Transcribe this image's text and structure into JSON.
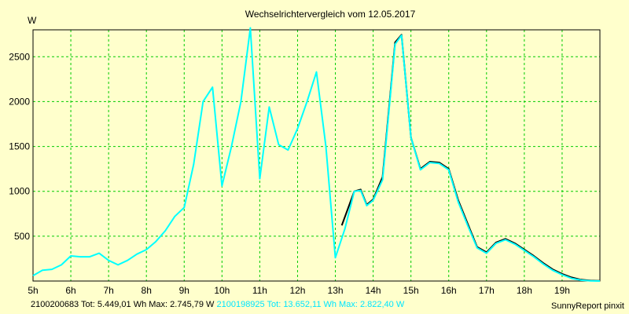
{
  "chart_data": {
    "type": "line",
    "title": "Wechselrichtervergleich vom 12.05.2017",
    "ylabel": "W",
    "xlim": [
      5,
      20
    ],
    "ylim": [
      0,
      2800
    ],
    "grid": true,
    "x_ticks": [
      {
        "value": 5,
        "label": "5h"
      },
      {
        "value": 6,
        "label": "6h"
      },
      {
        "value": 7,
        "label": "7h"
      },
      {
        "value": 8,
        "label": "8h"
      },
      {
        "value": 9,
        "label": "9h"
      },
      {
        "value": 10,
        "label": "10h"
      },
      {
        "value": 11,
        "label": "11h"
      },
      {
        "value": 12,
        "label": "12h"
      },
      {
        "value": 13,
        "label": "13h"
      },
      {
        "value": 14,
        "label": "14h"
      },
      {
        "value": 15,
        "label": "15h"
      },
      {
        "value": 16,
        "label": "16h"
      },
      {
        "value": 17,
        "label": "17h"
      },
      {
        "value": 18,
        "label": "18h"
      },
      {
        "value": 19,
        "label": "19h"
      }
    ],
    "y_ticks": [
      {
        "value": 500,
        "label": "500"
      },
      {
        "value": 1000,
        "label": "1000"
      },
      {
        "value": 1500,
        "label": "1500"
      },
      {
        "value": 2000,
        "label": "2000"
      },
      {
        "value": 2500,
        "label": "2500"
      }
    ],
    "series": [
      {
        "id": "2100200683",
        "color": "#000000",
        "points": [
          [
            13.17,
            620
          ],
          [
            13.5,
            1000
          ],
          [
            13.67,
            1020
          ],
          [
            13.83,
            850
          ],
          [
            14.0,
            910
          ],
          [
            14.25,
            1160
          ],
          [
            14.58,
            2660
          ],
          [
            14.75,
            2745
          ],
          [
            15.0,
            1600
          ],
          [
            15.25,
            1250
          ],
          [
            15.5,
            1330
          ],
          [
            15.75,
            1320
          ],
          [
            16.0,
            1250
          ],
          [
            16.25,
            900
          ],
          [
            16.5,
            640
          ],
          [
            16.75,
            380
          ],
          [
            17.0,
            320
          ],
          [
            17.25,
            430
          ],
          [
            17.5,
            470
          ],
          [
            17.75,
            420
          ],
          [
            18.0,
            350
          ],
          [
            18.25,
            280
          ],
          [
            18.5,
            200
          ],
          [
            18.75,
            130
          ],
          [
            19.0,
            80
          ],
          [
            19.25,
            40
          ],
          [
            19.5,
            15
          ],
          [
            19.75,
            5
          ],
          [
            20.0,
            2
          ]
        ]
      },
      {
        "id": "2100198925",
        "color": "#00ffff",
        "points": [
          [
            5.0,
            60
          ],
          [
            5.25,
            120
          ],
          [
            5.5,
            130
          ],
          [
            5.75,
            180
          ],
          [
            6.0,
            280
          ],
          [
            6.25,
            270
          ],
          [
            6.5,
            270
          ],
          [
            6.75,
            310
          ],
          [
            7.0,
            230
          ],
          [
            7.25,
            180
          ],
          [
            7.5,
            230
          ],
          [
            7.75,
            300
          ],
          [
            8.0,
            350
          ],
          [
            8.25,
            440
          ],
          [
            8.5,
            560
          ],
          [
            8.75,
            720
          ],
          [
            9.0,
            820
          ],
          [
            9.25,
            1300
          ],
          [
            9.5,
            2000
          ],
          [
            9.75,
            2160
          ],
          [
            10.0,
            1060
          ],
          [
            10.25,
            1500
          ],
          [
            10.5,
            2000
          ],
          [
            10.75,
            2822
          ],
          [
            11.0,
            1140
          ],
          [
            11.25,
            1940
          ],
          [
            11.5,
            1520
          ],
          [
            11.75,
            1460
          ],
          [
            12.0,
            1700
          ],
          [
            12.25,
            2000
          ],
          [
            12.5,
            2330
          ],
          [
            12.75,
            1500
          ],
          [
            13.0,
            260
          ],
          [
            13.25,
            580
          ],
          [
            13.5,
            1000
          ],
          [
            13.67,
            1010
          ],
          [
            13.83,
            840
          ],
          [
            14.0,
            900
          ],
          [
            14.25,
            1130
          ],
          [
            14.58,
            2640
          ],
          [
            14.75,
            2740
          ],
          [
            15.0,
            1600
          ],
          [
            15.25,
            1240
          ],
          [
            15.5,
            1320
          ],
          [
            15.75,
            1310
          ],
          [
            16.0,
            1240
          ],
          [
            16.25,
            880
          ],
          [
            16.5,
            620
          ],
          [
            16.75,
            370
          ],
          [
            17.0,
            310
          ],
          [
            17.25,
            420
          ],
          [
            17.5,
            460
          ],
          [
            17.75,
            410
          ],
          [
            18.0,
            340
          ],
          [
            18.25,
            270
          ],
          [
            18.5,
            190
          ],
          [
            18.75,
            120
          ],
          [
            19.0,
            70
          ],
          [
            19.25,
            30
          ],
          [
            19.5,
            10
          ],
          [
            19.75,
            3
          ],
          [
            20.0,
            0
          ]
        ]
      }
    ]
  },
  "footer": {
    "s1_id": "2100200683",
    "s1_stats": "Tot: 5.449,01 Wh Max: 2.745,79 W",
    "s2_id": "2100198925",
    "s2_stats": "Tot: 13.652,11 Wh Max: 2.822,40 W",
    "brand": "SunnyReport pinxit"
  }
}
